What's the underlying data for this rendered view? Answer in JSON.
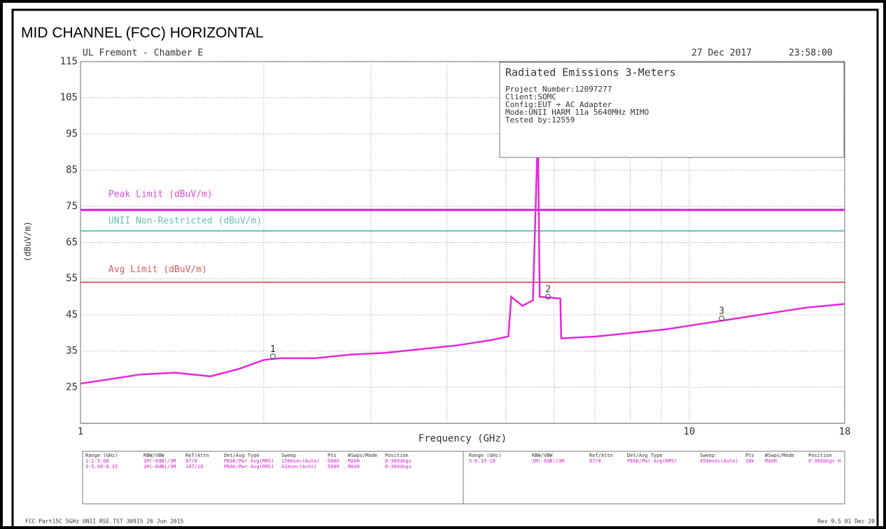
{
  "title": "MID CHANNEL (FCC) HORIZONTAL",
  "header": {
    "site": "UL Fremont - Chamber E",
    "date": "27 Dec 2017",
    "time": "23:58:00"
  },
  "info": {
    "heading": "Radiated Emissions 3-Meters",
    "lines": [
      "Project Number:12097277",
      "Client:SOMC",
      "Config:EUT + AC Adapter",
      "Mode:UNII HARM 11a 5640MHz MIMO",
      "Tested by:12559"
    ]
  },
  "chart_data": {
    "type": "line",
    "xlabel": "Frequency (GHz)",
    "ylabel": "(dBuV/m)",
    "xscale": "log",
    "xlim": [
      1,
      18
    ],
    "xticks": [
      1,
      10,
      18
    ],
    "xgrid": [
      2,
      3,
      4,
      5,
      6,
      7,
      8,
      9
    ],
    "ylim": [
      15,
      115
    ],
    "yticks": [
      25,
      35,
      45,
      55,
      65,
      75,
      85,
      95,
      105,
      115
    ],
    "grid": true,
    "x": [
      1,
      1.097,
      1.253,
      1.431,
      1.634,
      1.816,
      2.0,
      2.13,
      2.432,
      2.777,
      3.171,
      3.621,
      4.135,
      4.721,
      5.045,
      5.1,
      5.32,
      5.535,
      5.64,
      5.68,
      6.14,
      6.16,
      7.03,
      8.02,
      9.16,
      10.46,
      11.95,
      13.64,
      15.57,
      18
    ],
    "series": [
      {
        "name": "Trace",
        "color": "#e428d8",
        "values": [
          26,
          27,
          28.5,
          29,
          28,
          30,
          32.5,
          33,
          33,
          34,
          34.5,
          35.5,
          36.5,
          38,
          39,
          50,
          47.5,
          49,
          96,
          50,
          49.5,
          38.5,
          39,
          40,
          41,
          42.5,
          44,
          45.5,
          47,
          48
        ]
      }
    ],
    "limits": [
      {
        "name": "Peak Limit (dBuV/m)",
        "value": 74,
        "color": "#d21ed2"
      },
      {
        "name": "UNII Non-Restricted (dBuV/m)",
        "value": 68.2,
        "color": "#3fb39b"
      },
      {
        "name": "Avg Limit (dBuV/m)",
        "value": 54,
        "color": "#d23232"
      }
    ],
    "markers": [
      {
        "label": "1",
        "x": 2.07,
        "value": 33.5
      },
      {
        "label": "2",
        "x": 5.86,
        "value": 50
      },
      {
        "label": "3",
        "x": 11.3,
        "value": 44
      }
    ]
  },
  "settings_table": {
    "left": {
      "header": [
        "Range (GHz)",
        "RBW/VBW",
        "Ref/Attn",
        "Det/Avg Type",
        "Sweep",
        "Pts",
        "#Swps/Mode",
        "Position"
      ],
      "rows": [
        [
          "1:1-5.08",
          "1M(-6dB)/3M",
          "87/8",
          "PEAK/Pwr Avg(RMS)",
          "156msec(Auto)",
          "6000",
          "MAXH",
          "0-360degs"
        ],
        [
          "3:5.09-6.15",
          "1M(-6dB)/3M",
          "107/18",
          "PEAK/Pwr Avg(RMS)",
          "41msec(Auto)",
          "5000",
          "MAXH",
          "0-360degs"
        ]
      ]
    },
    "right": {
      "header": [
        "Range (GHz)",
        "RBW/VBW",
        "Ref/Attn",
        "Det/Avg Type",
        "Sweep",
        "Pts",
        "#Swps/Mode",
        "Position"
      ],
      "rows": [
        [
          "5:6.15-18",
          "1M(-6dB)/3M",
          "87/8",
          "PEAK/Pwr Avg(RMS)",
          "454msec(Auto)",
          "18k",
          "MAXH",
          "0-360degs H"
        ]
      ]
    }
  },
  "footer": {
    "left": "FCC Part15C 5GHz UNII RSE.TST 30915 26 Jun 2015",
    "right": "Rev 9.5 01 Dec 20"
  }
}
